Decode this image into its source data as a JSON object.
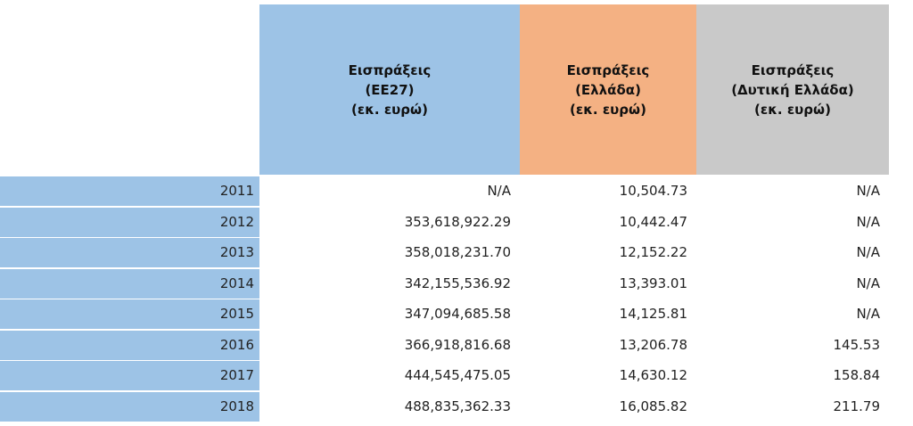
{
  "table": {
    "headers": [
      {
        "line1": "Εισπράξεις",
        "line2": "(ΕΕ27)",
        "line3": "(εκ. ευρώ)"
      },
      {
        "line1": "Εισπράξεις",
        "line2": "(Ελλάδα)",
        "line3": "(εκ. ευρώ)"
      },
      {
        "line1": "Εισπράξεις",
        "line2": "(Δυτική Ελλάδα)",
        "line3": "(εκ. ευρώ)"
      }
    ],
    "rows": [
      {
        "year": "2011",
        "eu27": "N/A",
        "greece": "10,504.73",
        "western_greece": "N/A"
      },
      {
        "year": "2012",
        "eu27": "353,618,922.29",
        "greece": "10,442.47",
        "western_greece": "N/A"
      },
      {
        "year": "2013",
        "eu27": "358,018,231.70",
        "greece": "12,152.22",
        "western_greece": "N/A"
      },
      {
        "year": "2014",
        "eu27": "342,155,536.92",
        "greece": "13,393.01",
        "western_greece": "N/A"
      },
      {
        "year": "2015",
        "eu27": "347,094,685.58",
        "greece": "14,125.81",
        "western_greece": "N/A"
      },
      {
        "year": "2016",
        "eu27": "366,918,816.68",
        "greece": "13,206.78",
        "western_greece": "145.53"
      },
      {
        "year": "2017",
        "eu27": "444,545,475.05",
        "greece": "14,630.12",
        "western_greece": "158.84"
      },
      {
        "year": "2018",
        "eu27": "488,835,362.33",
        "greece": "16,085.82",
        "western_greece": "211.79"
      }
    ]
  },
  "colors": {
    "eu27_header": "#9dc3e6",
    "greece_header": "#f4b183",
    "western_greece_header": "#c9c9c9",
    "year_column": "#9dc3e6"
  }
}
